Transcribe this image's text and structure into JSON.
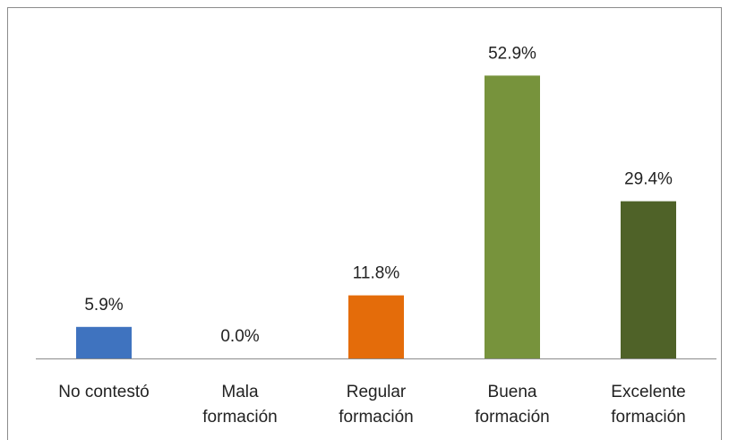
{
  "chart_data": {
    "type": "bar",
    "categories": [
      "No contestó",
      "Mala formación",
      "Regular formación",
      "Buena formación",
      "Excelente formación"
    ],
    "values": [
      5.9,
      0.0,
      11.8,
      52.9,
      29.4
    ],
    "value_labels": [
      "5.9%",
      "0.0%",
      "11.8%",
      "52.9%",
      "29.4%"
    ],
    "colors": [
      "#3f73bf",
      "#4a7ebb",
      "#e46c0a",
      "#77933c",
      "#4f6228"
    ],
    "ylim": [
      0,
      60
    ]
  }
}
